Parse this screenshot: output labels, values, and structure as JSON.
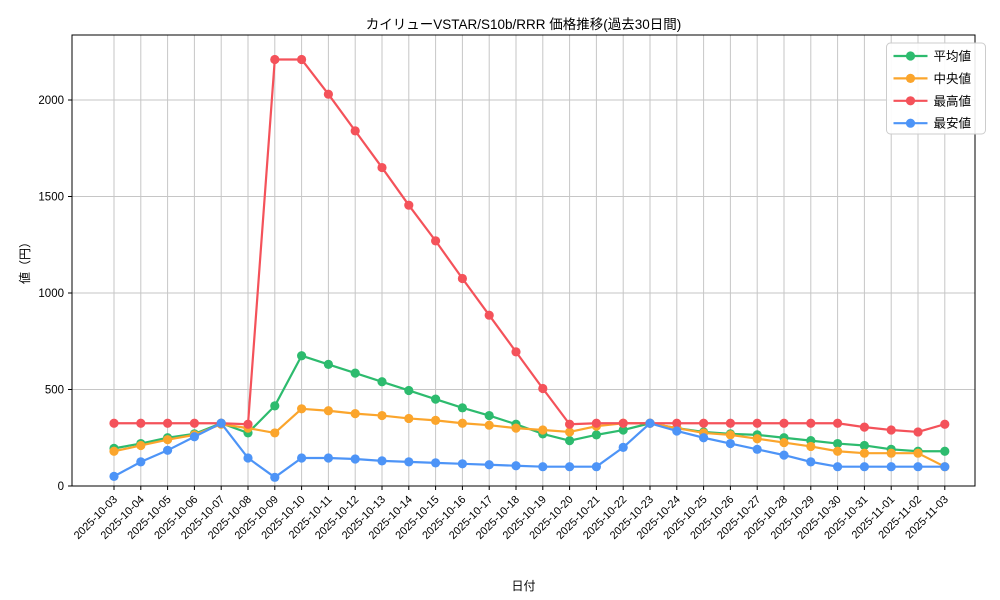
{
  "figure": {
    "title": "カイリューVSTAR/S10b/RRR 価格推移(過去30日間)",
    "xlabel": "日付",
    "ylabel": "値（円）"
  },
  "chart_data": {
    "type": "line",
    "title": "カイリューVSTAR/S10b/RRR 価格推移(過去30日間)",
    "xlabel": "日付",
    "ylabel": "値（円）",
    "grid": true,
    "ylim": [
      0,
      2336
    ],
    "yticks": [
      0,
      500,
      1000,
      1500,
      2000
    ],
    "legend": {
      "position": "upper-right",
      "entries": [
        "平均値",
        "中央値",
        "最高値",
        "最安値"
      ]
    },
    "x": [
      "2025-10-03",
      "2025-10-04",
      "2025-10-05",
      "2025-10-06",
      "2025-10-07",
      "2025-10-08",
      "2025-10-09",
      "2025-10-10",
      "2025-10-11",
      "2025-10-12",
      "2025-10-13",
      "2025-10-14",
      "2025-10-15",
      "2025-10-16",
      "2025-10-17",
      "2025-10-18",
      "2025-10-19",
      "2025-10-20",
      "2025-10-21",
      "2025-10-22",
      "2025-10-23",
      "2025-10-24",
      "2025-10-25",
      "2025-10-26",
      "2025-10-27",
      "2025-10-28",
      "2025-10-29",
      "2025-10-30",
      "2025-10-31",
      "2025-11-01",
      "2025-11-02",
      "2025-11-03"
    ],
    "series": [
      {
        "name": "平均値",
        "color": "#2dbb6e",
        "values": [
          195,
          220,
          250,
          270,
          325,
          275,
          415,
          675,
          630,
          585,
          540,
          495,
          450,
          405,
          365,
          320,
          270,
          235,
          265,
          290,
          325,
          300,
          280,
          270,
          265,
          250,
          235,
          220,
          210,
          190,
          180,
          180
        ]
      },
      {
        "name": "中央値",
        "color": "#fba52c",
        "values": [
          180,
          210,
          240,
          265,
          320,
          300,
          275,
          400,
          390,
          375,
          365,
          350,
          340,
          325,
          315,
          300,
          290,
          280,
          310,
          325,
          325,
          300,
          275,
          265,
          245,
          225,
          205,
          180,
          170,
          170,
          170,
          100
        ]
      },
      {
        "name": "最高値",
        "color": "#f4525a",
        "values": [
          325,
          325,
          325,
          325,
          325,
          320,
          2210,
          2210,
          2030,
          1840,
          1650,
          1455,
          1270,
          1075,
          885,
          695,
          505,
          320,
          325,
          325,
          325,
          325,
          325,
          325,
          325,
          325,
          325,
          325,
          305,
          290,
          280,
          320
        ]
      },
      {
        "name": "最安値",
        "color": "#4d94f7",
        "values": [
          50,
          125,
          185,
          255,
          325,
          145,
          45,
          145,
          145,
          140,
          130,
          125,
          120,
          115,
          110,
          105,
          100,
          100,
          100,
          200,
          325,
          285,
          250,
          220,
          190,
          160,
          125,
          100,
          100,
          100,
          100,
          100
        ]
      }
    ]
  }
}
